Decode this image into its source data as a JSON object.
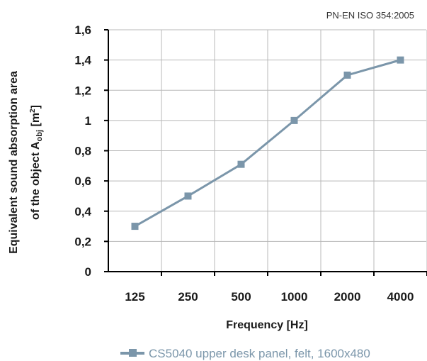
{
  "chart_data": {
    "type": "line",
    "standard_note": "PN-EN ISO 354:2005",
    "xlabel": "Frequency [Hz]",
    "ylabel_line1": "Equivalent sound absorption area",
    "ylabel_line2_prefix": "of the object A",
    "ylabel_subscript": "obj",
    "ylabel_unit_open": " [m",
    "ylabel_superscript": "2",
    "ylabel_unit_close": "]",
    "categories": [
      "125",
      "250",
      "500",
      "1000",
      "2000",
      "4000"
    ],
    "yticks": [
      "0",
      "0,2",
      "0,4",
      "0,6",
      "0,8",
      "1",
      "1,2",
      "1,4",
      "1,6"
    ],
    "ylim": [
      0,
      1.6
    ],
    "grid": true,
    "legend_position": "bottom",
    "series": [
      {
        "name": "CS5040 upper desk panel, felt, 1600x480",
        "color": "#7b96aa",
        "values": [
          0.3,
          0.5,
          0.71,
          1.0,
          1.3,
          1.4
        ]
      }
    ]
  }
}
